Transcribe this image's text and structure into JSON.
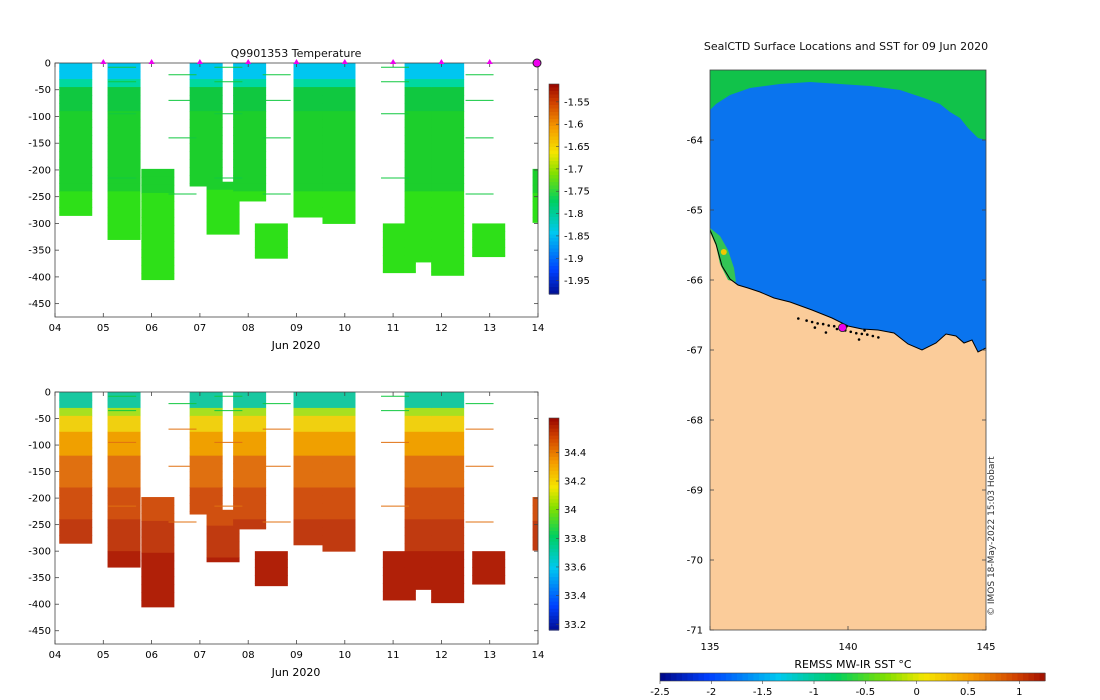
{
  "chart_data": [
    {
      "type": "heatmap",
      "panel": "top-left",
      "title": "Q9901353  Temperature",
      "xlabel": "Jun 2020",
      "ylabel": "",
      "x_ticks": [
        "04",
        "05",
        "06",
        "07",
        "08",
        "09",
        "10",
        "11",
        "12",
        "13",
        "14"
      ],
      "y_ticks": [
        0,
        -50,
        -100,
        -150,
        -200,
        -250,
        -300,
        -350,
        -400,
        -450
      ],
      "ylim": [
        -475,
        0
      ],
      "xlim": [
        4,
        14
      ],
      "surface_markers_day": [
        5,
        6,
        7,
        8,
        9,
        10,
        11,
        12,
        13
      ],
      "current_marker_day": 14,
      "colorbar_ticks": [
        "-1.55",
        "-1.6",
        "-1.65",
        "-1.7",
        "-1.75",
        "-1.8",
        "-1.85",
        "-1.9",
        "-1.95"
      ],
      "colorbar_range": [
        -1.98,
        -1.51
      ],
      "profiles": [
        {
          "day": 4.15,
          "bottom": -285,
          "palette": "temp"
        },
        {
          "day": 5.15,
          "bottom": -330,
          "palette": "temp"
        },
        {
          "day": 5.85,
          "bottom": -405,
          "palette": "temp",
          "start": -198
        },
        {
          "day": 6.85,
          "bottom": -230,
          "palette": "temp"
        },
        {
          "day": 7.2,
          "bottom": -320,
          "palette": "temp",
          "start": -222
        },
        {
          "day": 7.75,
          "bottom": -258,
          "palette": "temp"
        },
        {
          "day": 8.2,
          "bottom": -365,
          "palette": "temp",
          "start": -300
        },
        {
          "day": 9.0,
          "bottom": -288,
          "palette": "temp"
        },
        {
          "day": 9.6,
          "bottom": -300,
          "palette": "temp"
        },
        {
          "day": 10.85,
          "bottom": -392,
          "palette": "temp",
          "start": -300
        },
        {
          "day": 11.3,
          "bottom": -372,
          "palette": "temp"
        },
        {
          "day": 11.85,
          "bottom": -397,
          "palette": "temp"
        },
        {
          "day": 12.7,
          "bottom": -362,
          "palette": "temp",
          "start": -300
        },
        {
          "day": 13.95,
          "bottom": -298,
          "palette": "temp",
          "start": -198
        }
      ]
    },
    {
      "type": "heatmap",
      "panel": "bottom-left",
      "title": "",
      "xlabel": "Jun 2020",
      "ylabel": "",
      "x_ticks": [
        "04",
        "05",
        "06",
        "07",
        "08",
        "09",
        "10",
        "11",
        "12",
        "13",
        "14"
      ],
      "y_ticks": [
        0,
        -50,
        -100,
        -150,
        -200,
        -250,
        -300,
        -350,
        -400,
        -450
      ],
      "ylim": [
        -475,
        0
      ],
      "xlim": [
        4,
        14
      ],
      "colorbar_ticks": [
        "34.4",
        "34.2",
        "34",
        "33.8",
        "33.6",
        "33.4",
        "33.2"
      ],
      "colorbar_range": [
        33.16,
        34.64
      ],
      "profiles": [
        {
          "day": 4.15,
          "bottom": -285,
          "palette": "sal"
        },
        {
          "day": 5.15,
          "bottom": -330,
          "palette": "sal"
        },
        {
          "day": 5.85,
          "bottom": -405,
          "palette": "sal",
          "start": -198
        },
        {
          "day": 6.85,
          "bottom": -230,
          "palette": "sal"
        },
        {
          "day": 7.2,
          "bottom": -320,
          "palette": "sal",
          "start": -222
        },
        {
          "day": 7.75,
          "bottom": -258,
          "palette": "sal"
        },
        {
          "day": 8.2,
          "bottom": -365,
          "palette": "sal",
          "start": -300
        },
        {
          "day": 9.0,
          "bottom": -288,
          "palette": "sal"
        },
        {
          "day": 9.6,
          "bottom": -300,
          "palette": "sal"
        },
        {
          "day": 10.85,
          "bottom": -392,
          "palette": "sal",
          "start": -300
        },
        {
          "day": 11.3,
          "bottom": -372,
          "palette": "sal"
        },
        {
          "day": 11.85,
          "bottom": -397,
          "palette": "sal"
        },
        {
          "day": 12.7,
          "bottom": -362,
          "palette": "sal",
          "start": -300
        },
        {
          "day": 13.95,
          "bottom": -298,
          "palette": "sal",
          "start": -198
        }
      ]
    },
    {
      "type": "heatmap",
      "panel": "map",
      "title": "SealCTD Surface Locations and SST for 09 Jun 2020",
      "xlabel": "",
      "ylabel": "",
      "x_ticks": [
        "135",
        "140",
        "145"
      ],
      "y_ticks": [
        "-64",
        "-65",
        "-66",
        "-67",
        "-68",
        "-69",
        "-70",
        "-71"
      ],
      "xlim": [
        135,
        145
      ],
      "ylim": [
        -71,
        -63
      ],
      "colorbar_label": "REMSS MW-IR SST °C",
      "colorbar_ticks": [
        "-2.5",
        "-2",
        "-1.5",
        "-1",
        "-0.5",
        "0",
        "0.5",
        "1"
      ],
      "colorbar_range": [
        -2.5,
        1.25
      ],
      "watermark": "© IMOS 18-May-2022 15:03 Hobart",
      "current_location": {
        "lon": 139.8,
        "lat": -66.68
      },
      "first_location": {
        "lon": 135.5,
        "lat": -65.6
      }
    }
  ]
}
